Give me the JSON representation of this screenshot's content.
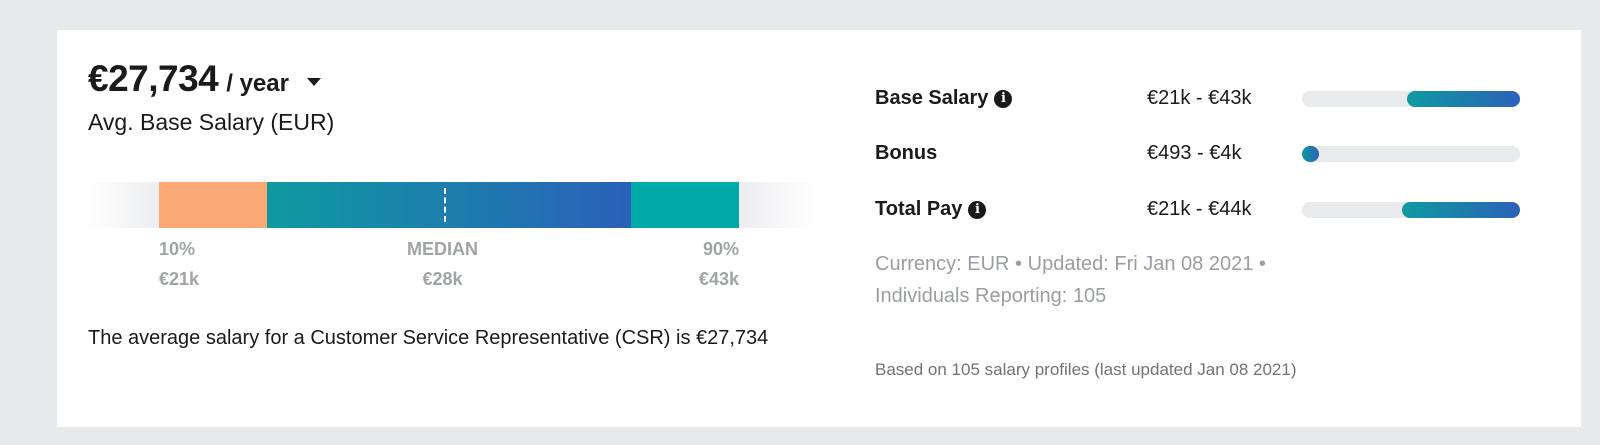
{
  "salary": {
    "amount": "€27,734",
    "period": "/ year",
    "caption": "Avg. Base Salary (EUR)"
  },
  "distribution": {
    "p10_label": "10%",
    "p10_value": "€21k",
    "median_label": "MEDIAN",
    "median_value": "€28k",
    "p90_label": "90%",
    "p90_value": "€43k",
    "colors": {
      "p10_segment": "#f9a874",
      "middle_start": "#0e9aa0",
      "middle_end": "#2b61b9",
      "p90_segment": "#00aaa6"
    }
  },
  "summary": "The average salary for a Customer Service Representative (CSR) is €27,734",
  "pay_components": [
    {
      "label": "Base Salary",
      "has_info": true,
      "range": "€21k - €43k",
      "fill_start": 0.48,
      "fill_end": 1.0
    },
    {
      "label": "Bonus",
      "has_info": false,
      "range": "€493 - €4k",
      "fill_start": 0.0,
      "fill_end": 0.08
    },
    {
      "label": "Total Pay",
      "has_info": true,
      "range": "€21k - €44k",
      "fill_start": 0.46,
      "fill_end": 1.0
    }
  ],
  "meta": {
    "currency": "Currency: EUR",
    "updated": "Updated: Fri Jan 08 2021",
    "individuals": "Individuals Reporting: 105",
    "separator": "•"
  },
  "footnote": "Based on 105 salary profiles (last updated Jan 08 2021)"
}
